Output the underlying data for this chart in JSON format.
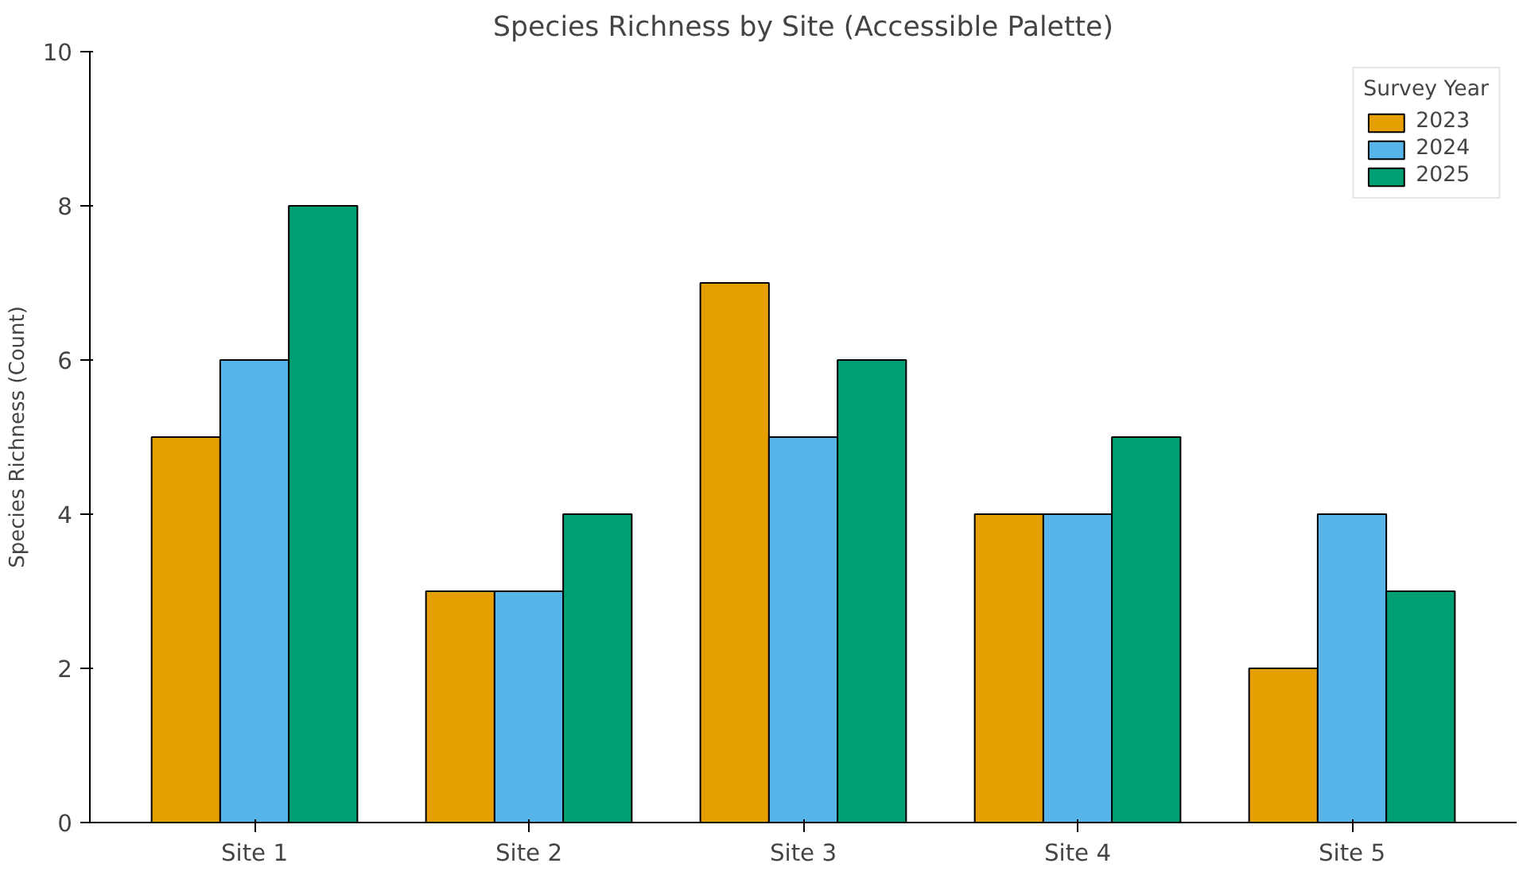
{
  "chart_data": {
    "type": "bar",
    "title": "Species Richness by Site (Accessible Palette)",
    "ylabel": "Species Richness (Count)",
    "legend_title": "Survey Year",
    "categories": [
      "Site 1",
      "Site 2",
      "Site 3",
      "Site 4",
      "Site 5"
    ],
    "series": [
      {
        "name": "2023",
        "color": "#e69f00",
        "values": [
          5,
          3,
          7,
          4,
          2
        ]
      },
      {
        "name": "2024",
        "color": "#56b4e9",
        "values": [
          6,
          3,
          5,
          4,
          4
        ]
      },
      {
        "name": "2025",
        "color": "#009e73",
        "values": [
          8,
          4,
          6,
          5,
          3
        ]
      }
    ],
    "ylim": [
      0,
      10
    ],
    "yticks": [
      0,
      2,
      4,
      6,
      8,
      10
    ],
    "grid": false,
    "legend": "top right"
  }
}
